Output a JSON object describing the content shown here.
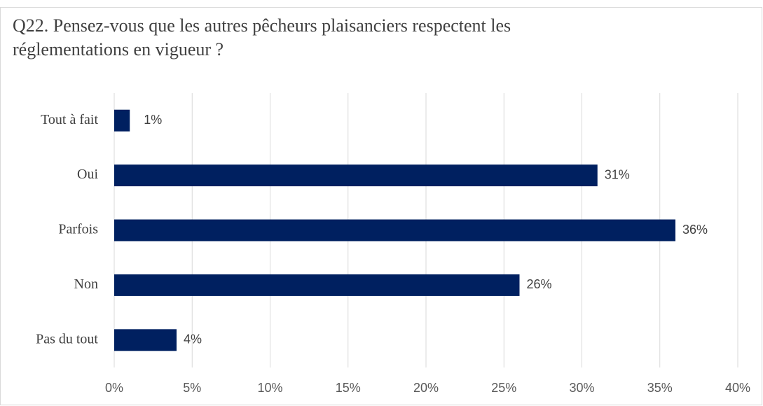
{
  "chart_data": {
    "type": "barh",
    "title": "Q22. Pensez-vous que les autres pêcheurs plaisanciers respectent les réglementations en vigueur ?",
    "categories": [
      "Tout à fait",
      "Oui",
      "Parfois",
      "Non",
      "Pas du tout"
    ],
    "values": [
      1,
      31,
      36,
      26,
      4
    ],
    "value_labels": [
      "1%",
      "31%",
      "36%",
      "26%",
      "4%"
    ],
    "color": "#002060",
    "xlim": [
      0,
      40
    ],
    "xticks": [
      {
        "value": 0,
        "label": "0%"
      },
      {
        "value": 5,
        "label": "5%"
      },
      {
        "value": 10,
        "label": "10%"
      },
      {
        "value": 15,
        "label": "15%"
      },
      {
        "value": 20,
        "label": "20%"
      },
      {
        "value": 25,
        "label": "25%"
      },
      {
        "value": 30,
        "label": "30%"
      },
      {
        "value": 35,
        "label": "35%"
      },
      {
        "value": 40,
        "label": "40%"
      }
    ],
    "grid": true
  }
}
